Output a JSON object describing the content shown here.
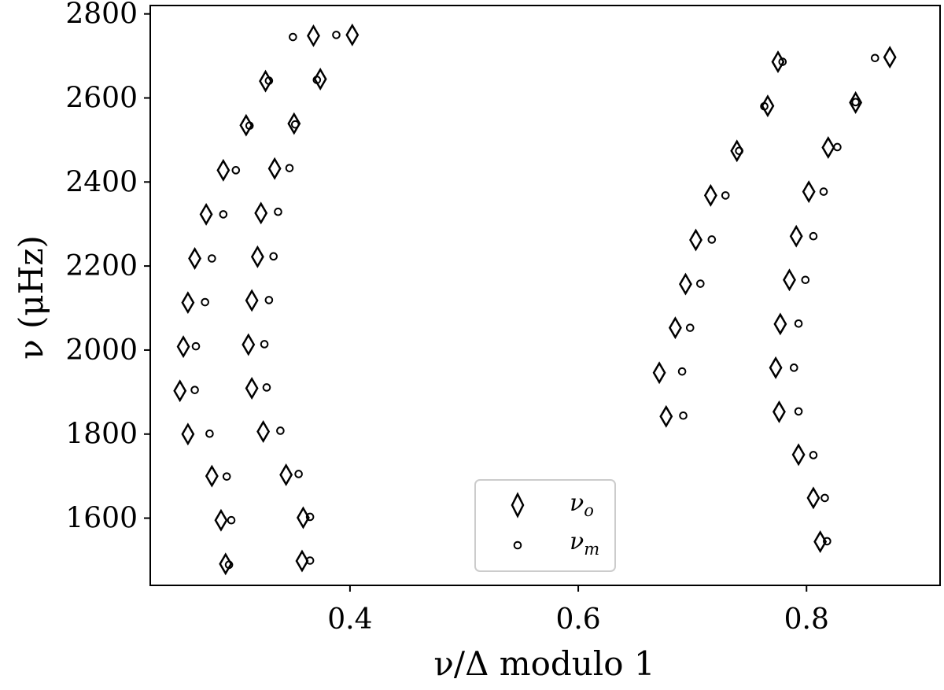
{
  "chart_data": {
    "type": "scatter",
    "xlabel": "ν/Δ modulo 1",
    "ylabel": "ν (μHz)",
    "xlim": [
      0.225,
      0.917
    ],
    "ylim": [
      1440,
      2820
    ],
    "xticks": [
      0.4,
      0.6,
      0.8
    ],
    "yticks": [
      1600,
      1800,
      2000,
      2200,
      2400,
      2600,
      2800
    ],
    "xtick_labels": [
      "0.4",
      "0.6",
      "0.8"
    ],
    "ytick_labels": [
      "1600",
      "1800",
      "2000",
      "2200",
      "2400",
      "2600",
      "2800"
    ],
    "legend": {
      "placement": "lower-center",
      "entries": [
        {
          "series": "observed",
          "label": "νo",
          "symbol": "ν",
          "sub": "o",
          "marker": "diamond"
        },
        {
          "series": "model",
          "label": "νm",
          "symbol": "ν",
          "sub": "m",
          "marker": "circle"
        }
      ]
    },
    "series": [
      {
        "key": "observed",
        "marker": "diamond",
        "points": [
          [
            0.291,
            1491
          ],
          [
            0.287,
            1595
          ],
          [
            0.279,
            1700
          ],
          [
            0.258,
            1800
          ],
          [
            0.251,
            1903
          ],
          [
            0.254,
            2008
          ],
          [
            0.258,
            2113
          ],
          [
            0.264,
            2218
          ],
          [
            0.274,
            2323
          ],
          [
            0.289,
            2428
          ],
          [
            0.309,
            2535
          ],
          [
            0.326,
            2640
          ],
          [
            0.368,
            2748
          ],
          [
            0.358,
            1498
          ],
          [
            0.359,
            1601
          ],
          [
            0.344,
            1703
          ],
          [
            0.324,
            1806
          ],
          [
            0.314,
            1909
          ],
          [
            0.311,
            2013
          ],
          [
            0.314,
            2118
          ],
          [
            0.319,
            2222
          ],
          [
            0.322,
            2326
          ],
          [
            0.334,
            2432
          ],
          [
            0.351,
            2539
          ],
          [
            0.374,
            2645
          ],
          [
            0.402,
            2750
          ],
          [
            0.677,
            1842
          ],
          [
            0.671,
            1946
          ],
          [
            0.685,
            2053
          ],
          [
            0.694,
            2157
          ],
          [
            0.703,
            2262
          ],
          [
            0.716,
            2368
          ],
          [
            0.739,
            2474
          ],
          [
            0.766,
            2581
          ],
          [
            0.775,
            2686
          ],
          [
            0.812,
            1544
          ],
          [
            0.806,
            1648
          ],
          [
            0.793,
            1751
          ],
          [
            0.776,
            1853
          ],
          [
            0.773,
            1958
          ],
          [
            0.777,
            2062
          ],
          [
            0.785,
            2167
          ],
          [
            0.791,
            2271
          ],
          [
            0.802,
            2377
          ],
          [
            0.819,
            2482
          ],
          [
            0.843,
            2589
          ],
          [
            0.873,
            2697
          ]
        ]
      },
      {
        "key": "model",
        "marker": "circle",
        "points": [
          [
            0.294,
            1489
          ],
          [
            0.296,
            1595
          ],
          [
            0.292,
            1699
          ],
          [
            0.277,
            1801
          ],
          [
            0.264,
            1905
          ],
          [
            0.265,
            2009
          ],
          [
            0.273,
            2114
          ],
          [
            0.279,
            2218
          ],
          [
            0.289,
            2323
          ],
          [
            0.3,
            2428
          ],
          [
            0.312,
            2534
          ],
          [
            0.329,
            2641
          ],
          [
            0.35,
            2745
          ],
          [
            0.365,
            1499
          ],
          [
            0.365,
            1603
          ],
          [
            0.355,
            1705
          ],
          [
            0.339,
            1808
          ],
          [
            0.327,
            1911
          ],
          [
            0.325,
            2014
          ],
          [
            0.329,
            2119
          ],
          [
            0.333,
            2223
          ],
          [
            0.337,
            2329
          ],
          [
            0.347,
            2433
          ],
          [
            0.352,
            2537
          ],
          [
            0.371,
            2643
          ],
          [
            0.388,
            2750
          ],
          [
            0.692,
            1844
          ],
          [
            0.691,
            1949
          ],
          [
            0.698,
            2053
          ],
          [
            0.707,
            2158
          ],
          [
            0.717,
            2263
          ],
          [
            0.729,
            2368
          ],
          [
            0.741,
            2474
          ],
          [
            0.763,
            2580
          ],
          [
            0.779,
            2686
          ],
          [
            0.818,
            1545
          ],
          [
            0.816,
            1648
          ],
          [
            0.806,
            1750
          ],
          [
            0.793,
            1854
          ],
          [
            0.789,
            1958
          ],
          [
            0.793,
            2063
          ],
          [
            0.799,
            2167
          ],
          [
            0.806,
            2271
          ],
          [
            0.815,
            2377
          ],
          [
            0.827,
            2483
          ],
          [
            0.843,
            2590
          ],
          [
            0.86,
            2695
          ]
        ]
      }
    ]
  }
}
